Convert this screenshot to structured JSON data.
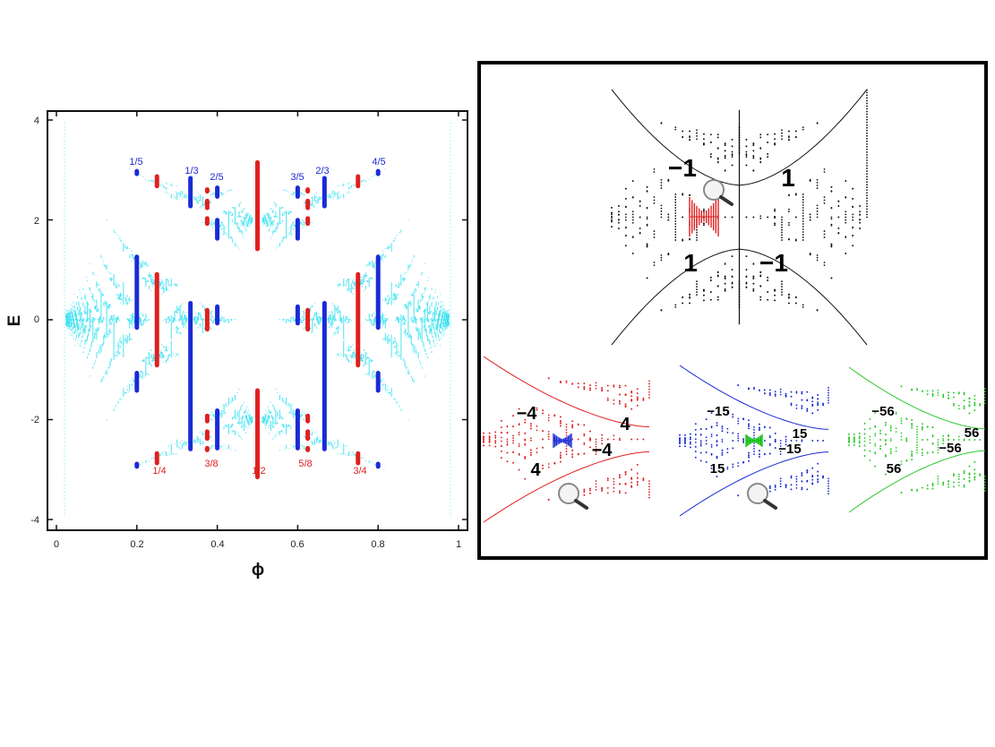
{
  "left_plot": {
    "xlabel": "ϕ",
    "ylabel": "E",
    "xlim": [
      0,
      1
    ],
    "ylim": [
      -4.2,
      4.2
    ],
    "x_ticks": [
      "0",
      "0.2",
      "0.4",
      "0.6",
      "0.8",
      "1"
    ],
    "y_ticks": [
      "4",
      "2",
      "0",
      "-2",
      "-4"
    ],
    "butterfly_color": "#33e0f0",
    "blue_fractions": [
      "1/5",
      "1/3",
      "2/5",
      "3/5",
      "2/3",
      "4/5"
    ],
    "red_fractions": [
      "1/4",
      "3/8",
      "1/2",
      "5/8",
      "3/4"
    ],
    "blue_color": "#1a2bd6",
    "red_color": "#e02020"
  },
  "right_panel": {
    "main_butterfly": {
      "color": "#111111",
      "zoom_color": "#e02020",
      "labels": [
        "−1",
        "1",
        "1",
        "−1"
      ]
    },
    "sub_butterflies": [
      {
        "color": "#e02020",
        "zoom_color": "#1a2bd6",
        "labels": [
          "−4",
          "4",
          "−4",
          "4"
        ]
      },
      {
        "color": "#1a2bd6",
        "zoom_color": "#10c010",
        "labels": [
          "−15",
          "15",
          "−15",
          "15"
        ]
      },
      {
        "color": "#2ec82e",
        "labels": [
          "−56",
          "56",
          "−56",
          "56"
        ]
      }
    ]
  }
}
